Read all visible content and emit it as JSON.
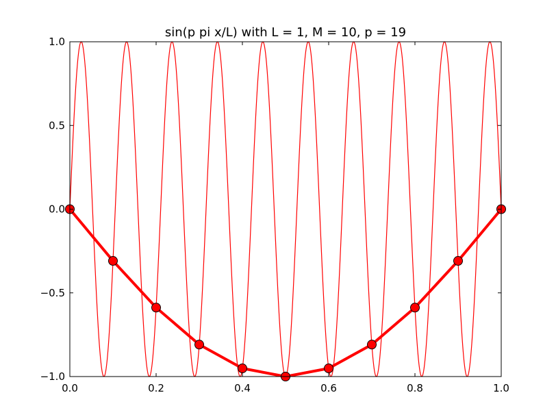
{
  "chart_data": {
    "type": "line",
    "title": "sin(p pi x/L) with L = 1, M = 10, p = 19",
    "xlabel": "",
    "ylabel": "",
    "xlim": [
      0.0,
      1.0
    ],
    "ylim": [
      -1.0,
      1.0
    ],
    "grid": false,
    "x_ticks": [
      "0.0",
      "0.2",
      "0.4",
      "0.6",
      "0.8",
      "1.0"
    ],
    "y_ticks": [
      "1.0",
      "0.5",
      "0.0",
      "−0.5",
      "−1.0"
    ],
    "x_tick_values": [
      0.0,
      0.2,
      0.4,
      0.6,
      0.8,
      1.0
    ],
    "y_tick_values": [
      1.0,
      0.5,
      0.0,
      -0.5,
      -1.0
    ],
    "series": [
      {
        "function": "sin(19*pi*x)",
        "color": "#ff0000",
        "marker": "none"
      },
      {
        "color": "#ff0000",
        "marker": "circle",
        "x": [
          0.0,
          0.1,
          0.2,
          0.3,
          0.4,
          0.5,
          0.6,
          0.7,
          0.8,
          0.9,
          1.0
        ],
        "values": [
          0.0,
          -0.309,
          -0.588,
          -0.809,
          -0.951,
          -1.0,
          -0.951,
          -0.809,
          -0.588,
          -0.309,
          0.0
        ]
      }
    ]
  }
}
